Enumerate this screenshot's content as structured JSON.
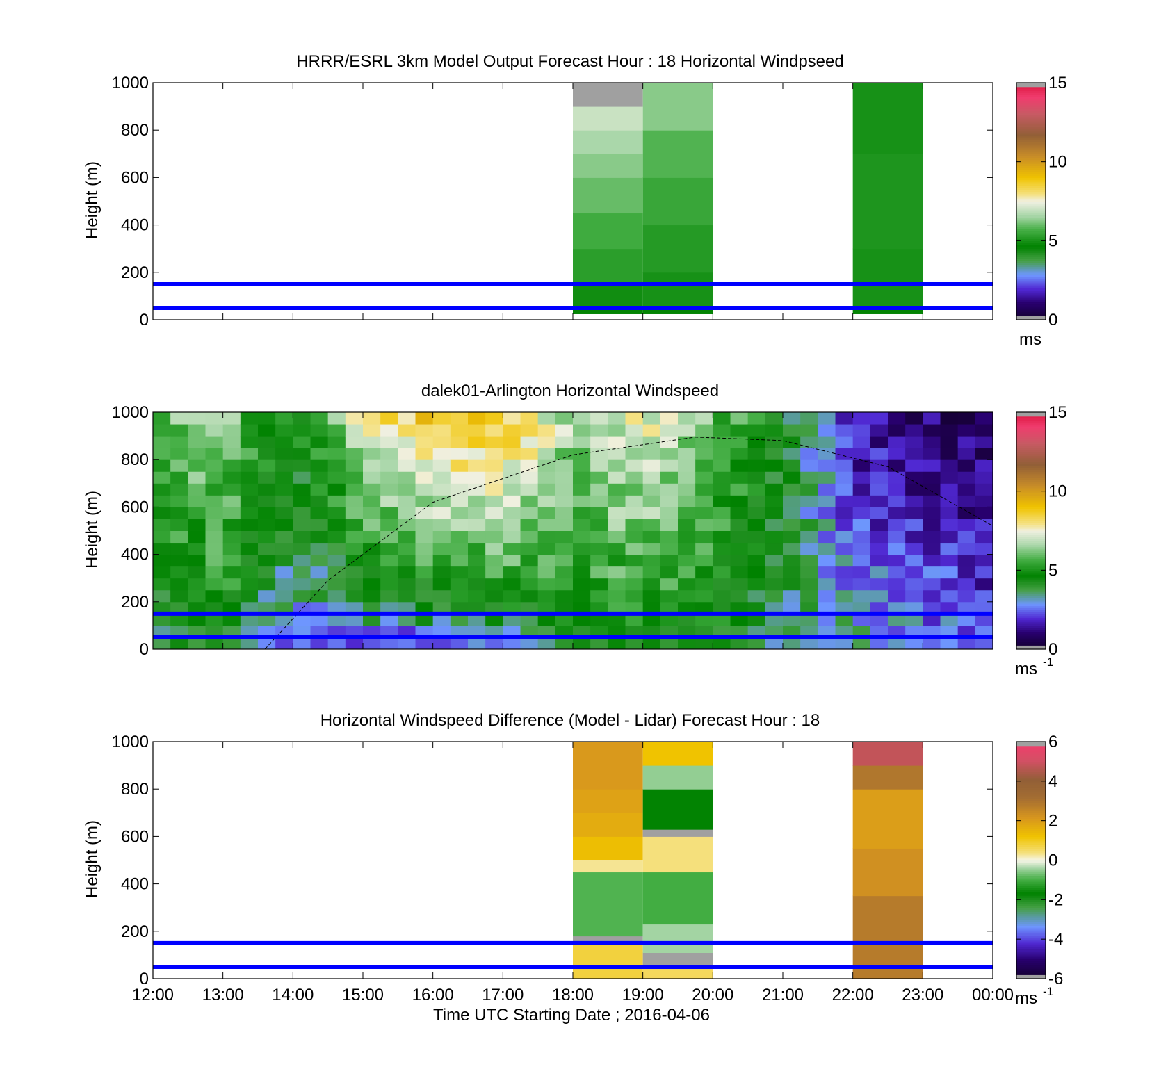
{
  "colors": {
    "hub_line": "#0000ff",
    "frame": "#000000",
    "missing": "#a0a0a0"
  },
  "chart_data": [
    {
      "type": "heatmap",
      "title": "HRRR/ESRL 3km Model Output   Forecast Hour : 18 Horizontal Windpseed",
      "ylabel": "Height (m)",
      "xlabel": "",
      "xlim_hours": [
        12,
        24
      ],
      "ylim": [
        0,
        1000
      ],
      "yticks": [
        0,
        200,
        400,
        600,
        800,
        1000
      ],
      "xtick_labels_shown": false,
      "hlines_m": [
        50,
        150
      ],
      "colorbar": {
        "min": 0,
        "max": 15,
        "ticks": [
          0,
          5,
          10,
          15
        ],
        "unit": "ms",
        "unit_sup": ""
      },
      "columns": [
        {
          "start_hour": 18,
          "end_hour": 19,
          "layers": [
            {
              "z0": 25,
              "z1": 50,
              "v": 4.7
            },
            {
              "z0": 50,
              "z1": 150,
              "v": 4.9
            },
            {
              "z0": 150,
              "z1": 300,
              "v": 5.3
            },
            {
              "z0": 300,
              "z1": 450,
              "v": 5.6
            },
            {
              "z0": 450,
              "z1": 600,
              "v": 6.0
            },
            {
              "z0": 600,
              "z1": 700,
              "v": 6.3
            },
            {
              "z0": 700,
              "z1": 800,
              "v": 6.6
            },
            {
              "z0": 800,
              "z1": 900,
              "v": 7.0
            },
            {
              "z0": 900,
              "z1": 1000,
              "v": null
            }
          ]
        },
        {
          "start_hour": 19,
          "end_hour": 20,
          "layers": [
            {
              "z0": 25,
              "z1": 50,
              "v": 4.7
            },
            {
              "z0": 50,
              "z1": 200,
              "v": 5.0
            },
            {
              "z0": 200,
              "z1": 400,
              "v": 5.2
            },
            {
              "z0": 400,
              "z1": 600,
              "v": 5.5
            },
            {
              "z0": 600,
              "z1": 800,
              "v": 5.8
            },
            {
              "z0": 800,
              "z1": 1000,
              "v": 6.3
            }
          ]
        },
        {
          "start_hour": 22,
          "end_hour": 23,
          "layers": [
            {
              "z0": 25,
              "z1": 50,
              "v": 4.6
            },
            {
              "z0": 50,
              "z1": 300,
              "v": 5.0
            },
            {
              "z0": 300,
              "z1": 700,
              "v": 5.1
            },
            {
              "z0": 700,
              "z1": 1000,
              "v": 5.0
            }
          ]
        }
      ]
    },
    {
      "type": "heatmap",
      "title": "dalek01-Arlington  Horizontal Windspeed",
      "ylabel": "Height (m)",
      "xlabel": "",
      "xlim_hours": [
        12,
        24
      ],
      "ylim": [
        0,
        1000
      ],
      "yticks": [
        0,
        200,
        400,
        600,
        800,
        1000
      ],
      "xtick_labels_shown": false,
      "hlines_m": [
        50,
        150
      ],
      "colorbar": {
        "min": 0,
        "max": 15,
        "ticks": [
          0,
          5,
          10,
          15
        ],
        "unit": "ms",
        "unit_sup": "-1"
      },
      "time_step_hours": 0.25,
      "levels_m": [
        25,
        75,
        125,
        175,
        225,
        275,
        325,
        375,
        425,
        475,
        525,
        575,
        625,
        675,
        725,
        775,
        825,
        875,
        925,
        975
      ],
      "boundary_layer_curve": [
        {
          "t": 13.6,
          "z": 0
        },
        {
          "t": 14.5,
          "z": 290
        },
        {
          "t": 16.0,
          "z": 620
        },
        {
          "t": 18.0,
          "z": 820
        },
        {
          "t": 19.75,
          "z": 895
        },
        {
          "t": 21.0,
          "z": 880
        },
        {
          "t": 22.5,
          "z": 770
        },
        {
          "t": 24.0,
          "z": 520
        }
      ],
      "time_profiles": [
        {
          "t": 12.0,
          "top": 6.0,
          "bottom": 3.5
        },
        {
          "t": 13.0,
          "top": 6.5,
          "bottom": 4.5
        },
        {
          "t": 14.0,
          "top": 4.5,
          "bottom": 2.5
        },
        {
          "t": 15.0,
          "top": 7.5,
          "bottom": 2.5
        },
        {
          "t": 16.0,
          "top": 9.0,
          "bottom": 2.5
        },
        {
          "t": 17.0,
          "top": 9.0,
          "bottom": 3.0
        },
        {
          "t": 18.0,
          "top": 6.5,
          "bottom": 4.5
        },
        {
          "t": 19.0,
          "top": 7.5,
          "bottom": 4.5
        },
        {
          "t": 20.0,
          "top": 6.0,
          "bottom": 4.5
        },
        {
          "t": 21.0,
          "top": 4.5,
          "bottom": 3.5
        },
        {
          "t": 22.0,
          "top": 1.5,
          "bottom": 3.5
        },
        {
          "t": 23.0,
          "top": 1.0,
          "bottom": 3.0
        },
        {
          "t": 24.0,
          "top": 0.8,
          "bottom": 2.5
        }
      ]
    },
    {
      "type": "heatmap",
      "title": "Horizontal Windspeed Difference (Model - Lidar) Forecast Hour : 18",
      "ylabel": "Height (m)",
      "xlabel": "Time UTC  Starting Date ; 2016-04-06",
      "xlim_hours": [
        12,
        24
      ],
      "ylim": [
        0,
        1000
      ],
      "yticks": [
        0,
        200,
        400,
        600,
        800,
        1000
      ],
      "xtick_labels": [
        "12:00",
        "13:00",
        "14:00",
        "15:00",
        "16:00",
        "17:00",
        "18:00",
        "19:00",
        "20:00",
        "21:00",
        "22:00",
        "23:00",
        "00:00"
      ],
      "hlines_m": [
        50,
        150
      ],
      "colorbar": {
        "min": -6,
        "max": 6,
        "ticks": [
          -6,
          -4,
          -2,
          0,
          2,
          4,
          6
        ],
        "unit": "ms",
        "unit_sup": "-1"
      },
      "columns": [
        {
          "start_hour": 18,
          "end_hour": 19,
          "layers": [
            {
              "z0": 0,
              "z1": 150,
              "v": 0.8
            },
            {
              "z0": 150,
              "z1": 180,
              "v": null
            },
            {
              "z0": 180,
              "z1": 450,
              "v": -0.9
            },
            {
              "z0": 450,
              "z1": 500,
              "v": 0.3
            },
            {
              "z0": 500,
              "z1": 600,
              "v": 1.3
            },
            {
              "z0": 600,
              "z1": 700,
              "v": 1.7
            },
            {
              "z0": 700,
              "z1": 800,
              "v": 1.9
            },
            {
              "z0": 800,
              "z1": 1000,
              "v": 2.1
            }
          ]
        },
        {
          "start_hour": 19,
          "end_hour": 20,
          "layers": [
            {
              "z0": 0,
              "z1": 60,
              "v": 0.6
            },
            {
              "z0": 60,
              "z1": 110,
              "v": null
            },
            {
              "z0": 110,
              "z1": 230,
              "v": -0.4
            },
            {
              "z0": 230,
              "z1": 450,
              "v": -1.0
            },
            {
              "z0": 450,
              "z1": 600,
              "v": 0.4
            },
            {
              "z0": 600,
              "z1": 630,
              "v": null
            },
            {
              "z0": 630,
              "z1": 800,
              "v": -1.7
            },
            {
              "z0": 800,
              "z1": 900,
              "v": -0.5
            },
            {
              "z0": 900,
              "z1": 1000,
              "v": 1.2
            }
          ]
        },
        {
          "start_hour": 22,
          "end_hour": 23,
          "layers": [
            {
              "z0": 0,
              "z1": 350,
              "v": 2.8
            },
            {
              "z0": 350,
              "z1": 550,
              "v": 2.3
            },
            {
              "z0": 550,
              "z1": 800,
              "v": 2.0
            },
            {
              "z0": 800,
              "z1": 900,
              "v": 2.9
            },
            {
              "z0": 900,
              "z1": 1000,
              "v": 4.8
            }
          ]
        }
      ]
    }
  ]
}
